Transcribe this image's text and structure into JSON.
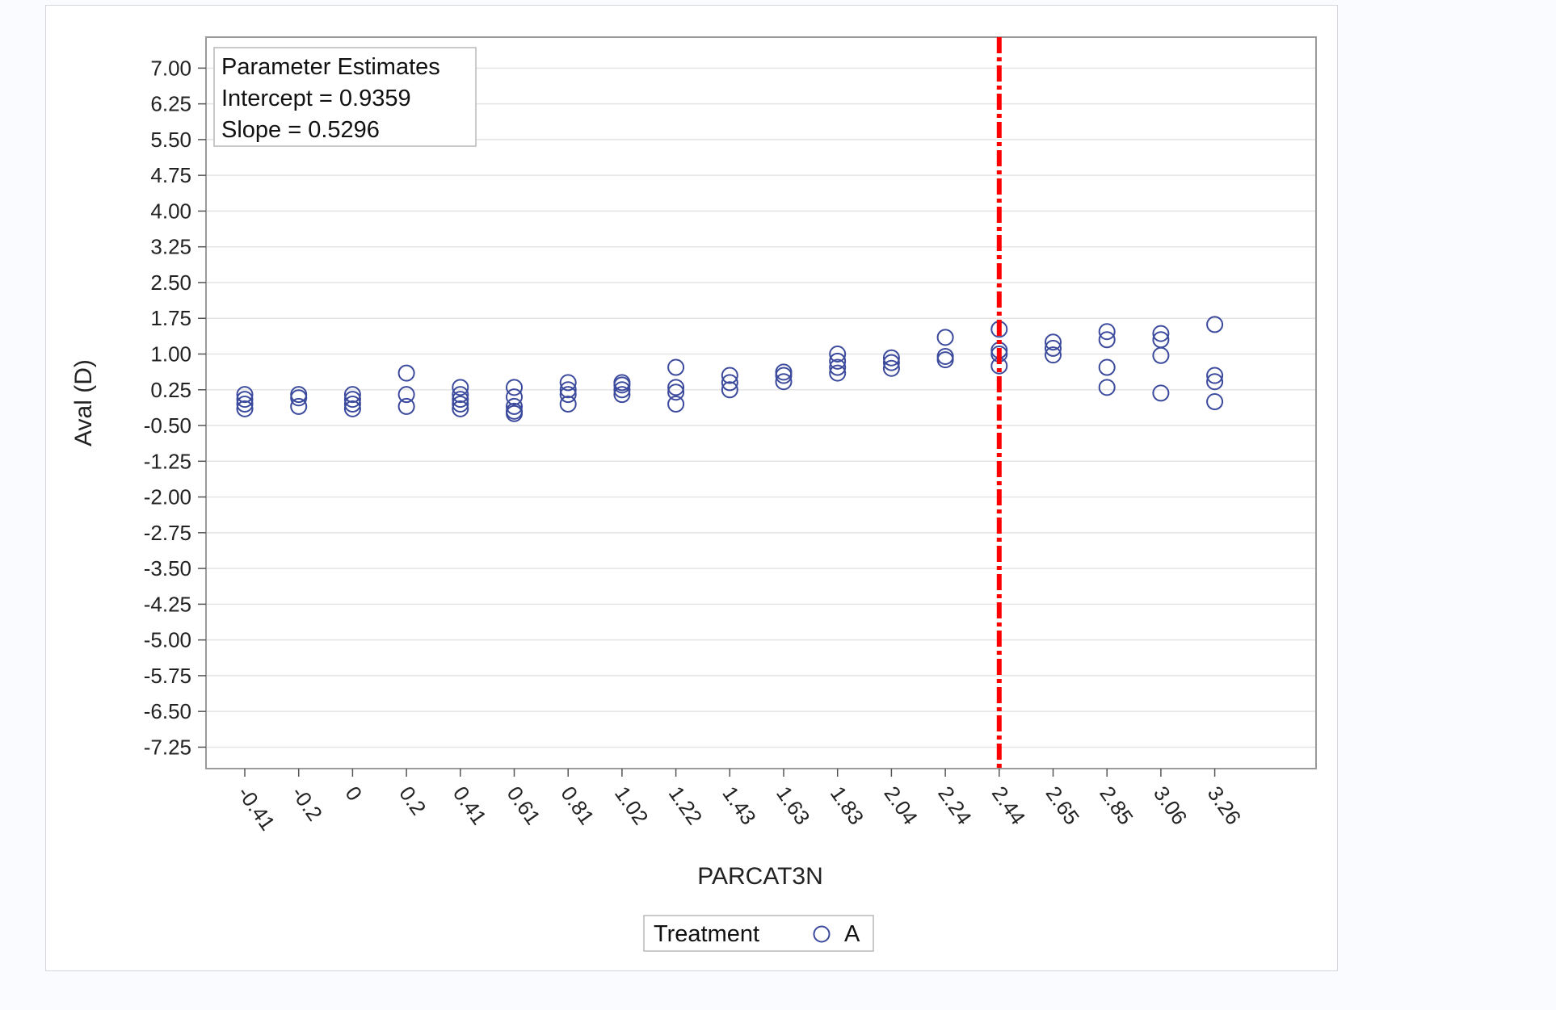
{
  "chart_data": {
    "type": "scatter",
    "xlabel": "PARCAT3N",
    "ylabel": "Aval (D)",
    "x_ticks": [
      "-0.41",
      "-0.2",
      "0",
      "0.2",
      "0.41",
      "0.61",
      "0.81",
      "1.02",
      "1.22",
      "1.43",
      "1.63",
      "1.83",
      "2.04",
      "2.24",
      "2.44",
      "2.65",
      "2.85",
      "3.06",
      "3.26"
    ],
    "y_ticks": [
      "7.00",
      "6.25",
      "5.50",
      "4.75",
      "4.00",
      "3.25",
      "2.50",
      "1.75",
      "1.00",
      "0.25",
      "-0.50",
      "-1.25",
      "-2.00",
      "-2.75",
      "-3.50",
      "-4.25",
      "-5.00",
      "-5.75",
      "-6.50",
      "-7.25"
    ],
    "ylim": [
      -7.7,
      7.65
    ],
    "grid": true,
    "inset": {
      "title": "Parameter Estimates",
      "lines": [
        "Intercept = 0.9359",
        "Slope = 0.5296"
      ]
    },
    "reference_line": {
      "x": "2.44",
      "color": "#ff0000",
      "style": "dash-dot"
    },
    "legend": {
      "title": "Treatment",
      "entries": [
        "A"
      ],
      "placement": "bottom"
    },
    "series": [
      {
        "name": "A",
        "color": "#3b4a9c",
        "marker": "circle-open",
        "points": [
          {
            "x": "-0.41",
            "y": 0.15
          },
          {
            "x": "-0.41",
            "y": 0.05
          },
          {
            "x": "-0.41",
            "y": -0.05
          },
          {
            "x": "-0.41",
            "y": -0.15
          },
          {
            "x": "-0.2",
            "y": 0.15
          },
          {
            "x": "-0.2",
            "y": 0.08
          },
          {
            "x": "-0.2",
            "y": -0.1
          },
          {
            "x": "0",
            "y": 0.15
          },
          {
            "x": "0",
            "y": 0.05
          },
          {
            "x": "0",
            "y": -0.05
          },
          {
            "x": "0",
            "y": -0.15
          },
          {
            "x": "0.2",
            "y": 0.6
          },
          {
            "x": "0.2",
            "y": 0.15
          },
          {
            "x": "0.2",
            "y": -0.1
          },
          {
            "x": "0.41",
            "y": 0.3
          },
          {
            "x": "0.41",
            "y": 0.15
          },
          {
            "x": "0.41",
            "y": 0.05
          },
          {
            "x": "0.41",
            "y": -0.05
          },
          {
            "x": "0.41",
            "y": -0.15
          },
          {
            "x": "0.61",
            "y": 0.3
          },
          {
            "x": "0.61",
            "y": 0.1
          },
          {
            "x": "0.61",
            "y": -0.1
          },
          {
            "x": "0.61",
            "y": -0.2
          },
          {
            "x": "0.61",
            "y": -0.25
          },
          {
            "x": "0.81",
            "y": 0.4
          },
          {
            "x": "0.81",
            "y": 0.25
          },
          {
            "x": "0.81",
            "y": 0.15
          },
          {
            "x": "0.81",
            "y": -0.05
          },
          {
            "x": "1.02",
            "y": 0.4
          },
          {
            "x": "1.02",
            "y": 0.35
          },
          {
            "x": "1.02",
            "y": 0.25
          },
          {
            "x": "1.02",
            "y": 0.15
          },
          {
            "x": "1.22",
            "y": 0.72
          },
          {
            "x": "1.22",
            "y": 0.3
          },
          {
            "x": "1.22",
            "y": 0.2
          },
          {
            "x": "1.22",
            "y": -0.05
          },
          {
            "x": "1.43",
            "y": 0.55
          },
          {
            "x": "1.43",
            "y": 0.4
          },
          {
            "x": "1.43",
            "y": 0.25
          },
          {
            "x": "1.63",
            "y": 0.62
          },
          {
            "x": "1.63",
            "y": 0.55
          },
          {
            "x": "1.63",
            "y": 0.42
          },
          {
            "x": "1.83",
            "y": 1.0
          },
          {
            "x": "1.83",
            "y": 0.85
          },
          {
            "x": "1.83",
            "y": 0.72
          },
          {
            "x": "1.83",
            "y": 0.6
          },
          {
            "x": "2.04",
            "y": 0.92
          },
          {
            "x": "2.04",
            "y": 0.82
          },
          {
            "x": "2.04",
            "y": 0.7
          },
          {
            "x": "2.24",
            "y": 1.35
          },
          {
            "x": "2.24",
            "y": 0.95
          },
          {
            "x": "2.24",
            "y": 0.88
          },
          {
            "x": "2.44",
            "y": 1.52
          },
          {
            "x": "2.44",
            "y": 1.08
          },
          {
            "x": "2.44",
            "y": 1.0
          },
          {
            "x": "2.44",
            "y": 0.75
          },
          {
            "x": "2.65",
            "y": 1.25
          },
          {
            "x": "2.65",
            "y": 1.12
          },
          {
            "x": "2.65",
            "y": 0.98
          },
          {
            "x": "2.85",
            "y": 1.47
          },
          {
            "x": "2.85",
            "y": 1.3
          },
          {
            "x": "2.85",
            "y": 0.72
          },
          {
            "x": "2.85",
            "y": 0.3
          },
          {
            "x": "3.06",
            "y": 1.43
          },
          {
            "x": "3.06",
            "y": 1.3
          },
          {
            "x": "3.06",
            "y": 0.97
          },
          {
            "x": "3.06",
            "y": 0.18
          },
          {
            "x": "3.26",
            "y": 1.62
          },
          {
            "x": "3.26",
            "y": 0.55
          },
          {
            "x": "3.26",
            "y": 0.42
          },
          {
            "x": "3.26",
            "y": 0.0
          }
        ]
      }
    ]
  }
}
